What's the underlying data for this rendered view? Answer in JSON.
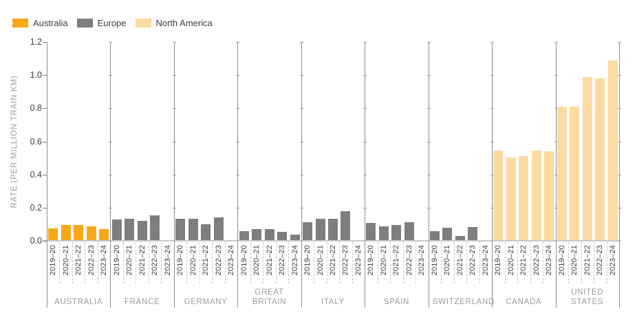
{
  "legend": [
    {
      "label": "Australia",
      "color": "#F7A81B"
    },
    {
      "label": "Europe",
      "color": "#7E7E7E"
    },
    {
      "label": "North America",
      "color": "#FBDBA2"
    }
  ],
  "chart_data": {
    "type": "bar",
    "title": "",
    "xlabel": "",
    "ylabel": "RATE (PER MILLION TRAIN KM)",
    "ylim": [
      0,
      1.2
    ],
    "yticks": [
      "0.0",
      "0.2",
      "0.4",
      "0.6",
      "0.8",
      "1.0",
      "1.2"
    ],
    "grid": false,
    "legend_position": "top-left",
    "year_categories": [
      "2019–20",
      "2020–21",
      "2021–22",
      "2022–23",
      "2023–24"
    ],
    "groups": [
      {
        "country": "AUSTRALIA",
        "region": "Australia",
        "values": [
          0.07,
          0.09,
          0.09,
          0.085,
          0.065
        ]
      },
      {
        "country": "FRANCE",
        "region": "Europe",
        "values": [
          0.125,
          0.13,
          0.115,
          0.15,
          null
        ]
      },
      {
        "country": "GERMANY",
        "region": "Europe",
        "values": [
          0.13,
          0.13,
          0.095,
          0.135,
          null
        ]
      },
      {
        "country": "GREAT BRITAIN",
        "region": "Europe",
        "values": [
          0.055,
          0.065,
          0.065,
          0.05,
          0.035
        ]
      },
      {
        "country": "ITALY",
        "region": "Europe",
        "values": [
          0.11,
          0.13,
          0.13,
          0.175,
          null
        ]
      },
      {
        "country": "SPAIN",
        "region": "Europe",
        "values": [
          0.105,
          0.085,
          0.09,
          0.11,
          null
        ]
      },
      {
        "country": "SWITZERLAND",
        "region": "Europe",
        "values": [
          0.055,
          0.075,
          0.025,
          0.08,
          null
        ]
      },
      {
        "country": "CANADA",
        "region": "North America",
        "values": [
          0.54,
          0.5,
          0.505,
          0.54,
          0.535
        ]
      },
      {
        "country": "UNITED STATES",
        "region": "North America",
        "values": [
          0.805,
          0.805,
          0.985,
          0.975,
          1.085
        ]
      }
    ]
  }
}
